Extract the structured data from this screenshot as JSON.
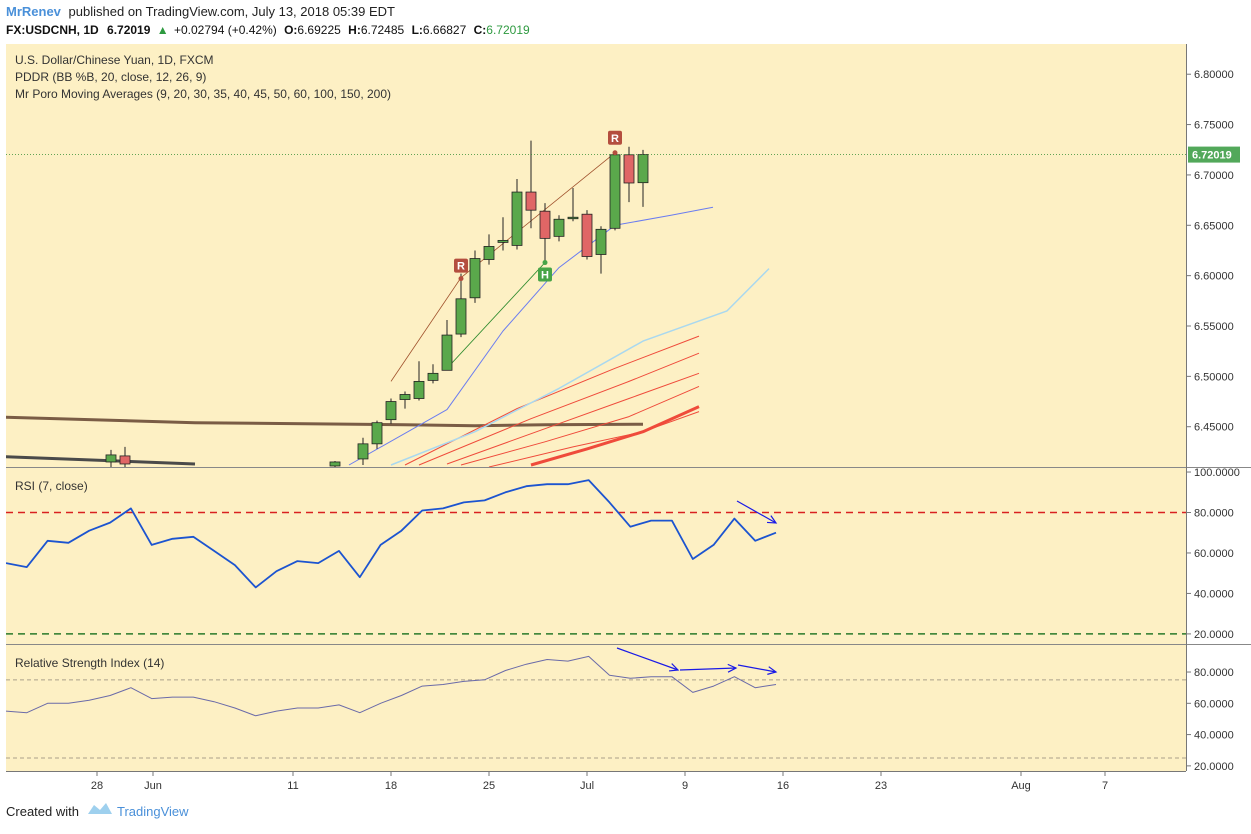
{
  "header": {
    "author": "MrRenev",
    "published": "published on TradingView.com, July 13, 2018 05:39 EDT",
    "symbol": "FX:USDCNH, 1D",
    "last": "6.72019",
    "change": "+0.02794 (+0.42%)",
    "o_label": "O:",
    "o": "6.69225",
    "h_label": "H:",
    "h": "6.72485",
    "l_label": "L:",
    "l": "6.66827",
    "c_label": "C:",
    "c": "6.72019"
  },
  "legend": {
    "line1": "U.S. Dollar/Chinese Yuan, 1D, FXCM",
    "line2": "PDDR (BB %B, 20, close, 12, 26, 9)",
    "line3": "Mr Poro Moving Averages (9, 20, 30, 35, 40, 45, 50, 60, 100, 150, 200)",
    "rsi1": "RSI (7, close)",
    "rsi2": "Relative Strength Index (14)"
  },
  "price_tag": "6.72019",
  "markers": {
    "r": "R",
    "h": "H"
  },
  "footer": {
    "created": "Created with",
    "brand": "TradingView"
  },
  "colors": {
    "bg": "#fdf0c4",
    "up": "#5aa84b",
    "down": "#e06666",
    "rsi_line": "#1c54d0",
    "ma_slow": "#7a5c45",
    "ma_fast": "#6a7cf0",
    "ma_light": "#a9d8ef",
    "ma_red": "#ef4b3b"
  },
  "chart_data": [
    {
      "type": "candlestick",
      "y_ticks": [
        "6.80000",
        "6.75000",
        "6.70000",
        "6.65000",
        "6.60000",
        "6.55000",
        "6.50000",
        "6.45000"
      ],
      "y_tick_values": [
        6.8,
        6.75,
        6.7,
        6.65,
        6.6,
        6.55,
        6.5,
        6.45
      ],
      "ylim": [
        6.41,
        6.83
      ],
      "x_tick_labels": [
        "28",
        "Jun",
        "11",
        "18",
        "25",
        "Jul",
        "9",
        "16",
        "23",
        "Aug",
        "7"
      ],
      "x_tick_days": [
        28,
        32,
        42,
        49,
        56,
        63,
        70,
        77,
        84,
        94,
        100
      ],
      "candles": [
        {
          "d": 29,
          "o": 6.415,
          "h": 6.427,
          "l": 6.402,
          "c": 6.422
        },
        {
          "d": 30,
          "o": 6.421,
          "h": 6.43,
          "l": 6.405,
          "c": 6.413
        },
        {
          "d": 45,
          "o": 6.411,
          "h": 6.416,
          "l": 6.408,
          "c": 6.415
        },
        {
          "d": 47,
          "o": 6.418,
          "h": 6.439,
          "l": 6.412,
          "c": 6.433
        },
        {
          "d": 48,
          "o": 6.433,
          "h": 6.456,
          "l": 6.428,
          "c": 6.454
        },
        {
          "d": 49,
          "o": 6.457,
          "h": 6.478,
          "l": 6.453,
          "c": 6.475
        },
        {
          "d": 50,
          "o": 6.477,
          "h": 6.485,
          "l": 6.468,
          "c": 6.482
        },
        {
          "d": 51,
          "o": 6.478,
          "h": 6.515,
          "l": 6.476,
          "c": 6.495
        },
        {
          "d": 52,
          "o": 6.496,
          "h": 6.512,
          "l": 6.493,
          "c": 6.503
        },
        {
          "d": 53,
          "o": 6.506,
          "h": 6.556,
          "l": 6.506,
          "c": 6.541
        },
        {
          "d": 54,
          "o": 6.542,
          "h": 6.602,
          "l": 6.539,
          "c": 6.577
        },
        {
          "d": 55,
          "o": 6.578,
          "h": 6.625,
          "l": 6.573,
          "c": 6.617
        },
        {
          "d": 56,
          "o": 6.616,
          "h": 6.641,
          "l": 6.611,
          "c": 6.629
        },
        {
          "d": 57,
          "o": 6.633,
          "h": 6.658,
          "l": 6.625,
          "c": 6.635
        },
        {
          "d": 58,
          "o": 6.63,
          "h": 6.696,
          "l": 6.626,
          "c": 6.683
        },
        {
          "d": 59,
          "o": 6.683,
          "h": 6.734,
          "l": 6.647,
          "c": 6.665
        },
        {
          "d": 60,
          "o": 6.664,
          "h": 6.672,
          "l": 6.613,
          "c": 6.637
        },
        {
          "d": 61,
          "o": 6.639,
          "h": 6.66,
          "l": 6.634,
          "c": 6.656
        },
        {
          "d": 62,
          "o": 6.657,
          "h": 6.687,
          "l": 6.654,
          "c": 6.658
        },
        {
          "d": 63,
          "o": 6.661,
          "h": 6.665,
          "l": 6.616,
          "c": 6.619
        },
        {
          "d": 64,
          "o": 6.621,
          "h": 6.649,
          "l": 6.602,
          "c": 6.646
        },
        {
          "d": 65,
          "o": 6.647,
          "h": 6.721,
          "l": 6.645,
          "c": 6.72
        },
        {
          "d": 66,
          "o": 6.72,
          "h": 6.728,
          "l": 6.673,
          "c": 6.692
        },
        {
          "d": 67,
          "o": 6.6923,
          "h": 6.7249,
          "l": 6.6683,
          "c": 6.7202
        }
      ],
      "ma_series": [
        {
          "color": "ma_slow",
          "width": 3,
          "points": [
            [
              0,
              6.471
            ],
            [
              10,
              6.466
            ],
            [
              20,
              6.46
            ],
            [
              35,
              6.454
            ],
            [
              50,
              6.452
            ],
            [
              55,
              6.451
            ],
            [
              60,
              6.452
            ],
            [
              67,
              6.4525
            ]
          ]
        },
        {
          "color": "ma_red",
          "width": 3,
          "points": [
            [
              59,
              6.412
            ],
            [
              63,
              6.428
            ],
            [
              67,
              6.445
            ],
            [
              71,
              6.47
            ]
          ]
        },
        {
          "color": "ma_red",
          "width": 1,
          "points": [
            [
              56,
              6.41
            ],
            [
              62,
              6.43
            ],
            [
              67,
              6.445
            ],
            [
              71,
              6.465
            ]
          ]
        },
        {
          "color": "ma_red",
          "width": 1,
          "points": [
            [
              54,
              6.412
            ],
            [
              60,
              6.435
            ],
            [
              66,
              6.46
            ],
            [
              71,
              6.49
            ]
          ]
        },
        {
          "color": "ma_red",
          "width": 1,
          "points": [
            [
              53,
              6.413
            ],
            [
              60,
              6.448
            ],
            [
              66,
              6.478
            ],
            [
              71,
              6.503
            ]
          ]
        },
        {
          "color": "ma_red",
          "width": 1,
          "points": [
            [
              51,
              6.412
            ],
            [
              59,
              6.458
            ],
            [
              66,
              6.495
            ],
            [
              71,
              6.523
            ]
          ]
        },
        {
          "color": "ma_red",
          "width": 1,
          "points": [
            [
              50,
              6.412
            ],
            [
              58,
              6.468
            ],
            [
              65,
              6.508
            ],
            [
              71,
              6.54
            ]
          ]
        },
        {
          "color": "ma_light",
          "width": 1.5,
          "points": [
            [
              49,
              6.412
            ],
            [
              55,
              6.445
            ],
            [
              61,
              6.488
            ],
            [
              67,
              6.535
            ],
            [
              73,
              6.565
            ],
            [
              76,
              6.607
            ]
          ]
        },
        {
          "color": "ma_fast",
          "width": 1,
          "points": [
            [
              46,
              6.412
            ],
            [
              53,
              6.467
            ],
            [
              57,
              6.545
            ],
            [
              61,
              6.608
            ],
            [
              65,
              6.65
            ],
            [
              69,
              6.66
            ],
            [
              72,
              6.668
            ]
          ]
        }
      ]
    },
    {
      "type": "line",
      "title": "RSI (7, close)",
      "y_ticks": [
        "100.0000",
        "80.0000",
        "60.0000",
        "40.0000",
        "20.0000"
      ],
      "y_tick_values": [
        100,
        80,
        60,
        40,
        20
      ],
      "ylim": [
        16,
        101
      ],
      "levels": [
        80,
        20
      ],
      "values": [
        55,
        53,
        66,
        65,
        71,
        75,
        82,
        64,
        67,
        68,
        61,
        54,
        43,
        51,
        56,
        55,
        61,
        48,
        64,
        71,
        81,
        82,
        85,
        86,
        90,
        93,
        94,
        94,
        96,
        85,
        73,
        76,
        76,
        57,
        64,
        77,
        66,
        70
      ]
    },
    {
      "type": "line",
      "title": "Relative Strength Index (14)",
      "y_ticks": [
        "80.0000",
        "60.0000",
        "40.0000",
        "20.0000"
      ],
      "y_tick_values": [
        80,
        60,
        40,
        20
      ],
      "ylim": [
        18,
        96
      ],
      "levels": [
        75,
        25
      ],
      "values": [
        55,
        54,
        60,
        60,
        62,
        65,
        70,
        63,
        64,
        64,
        61,
        57,
        52,
        55,
        57,
        57,
        59,
        54,
        60,
        65,
        71,
        72,
        74,
        75,
        81,
        85,
        88,
        87,
        90,
        78,
        76,
        77,
        77,
        67,
        71,
        77,
        70,
        72
      ]
    }
  ]
}
